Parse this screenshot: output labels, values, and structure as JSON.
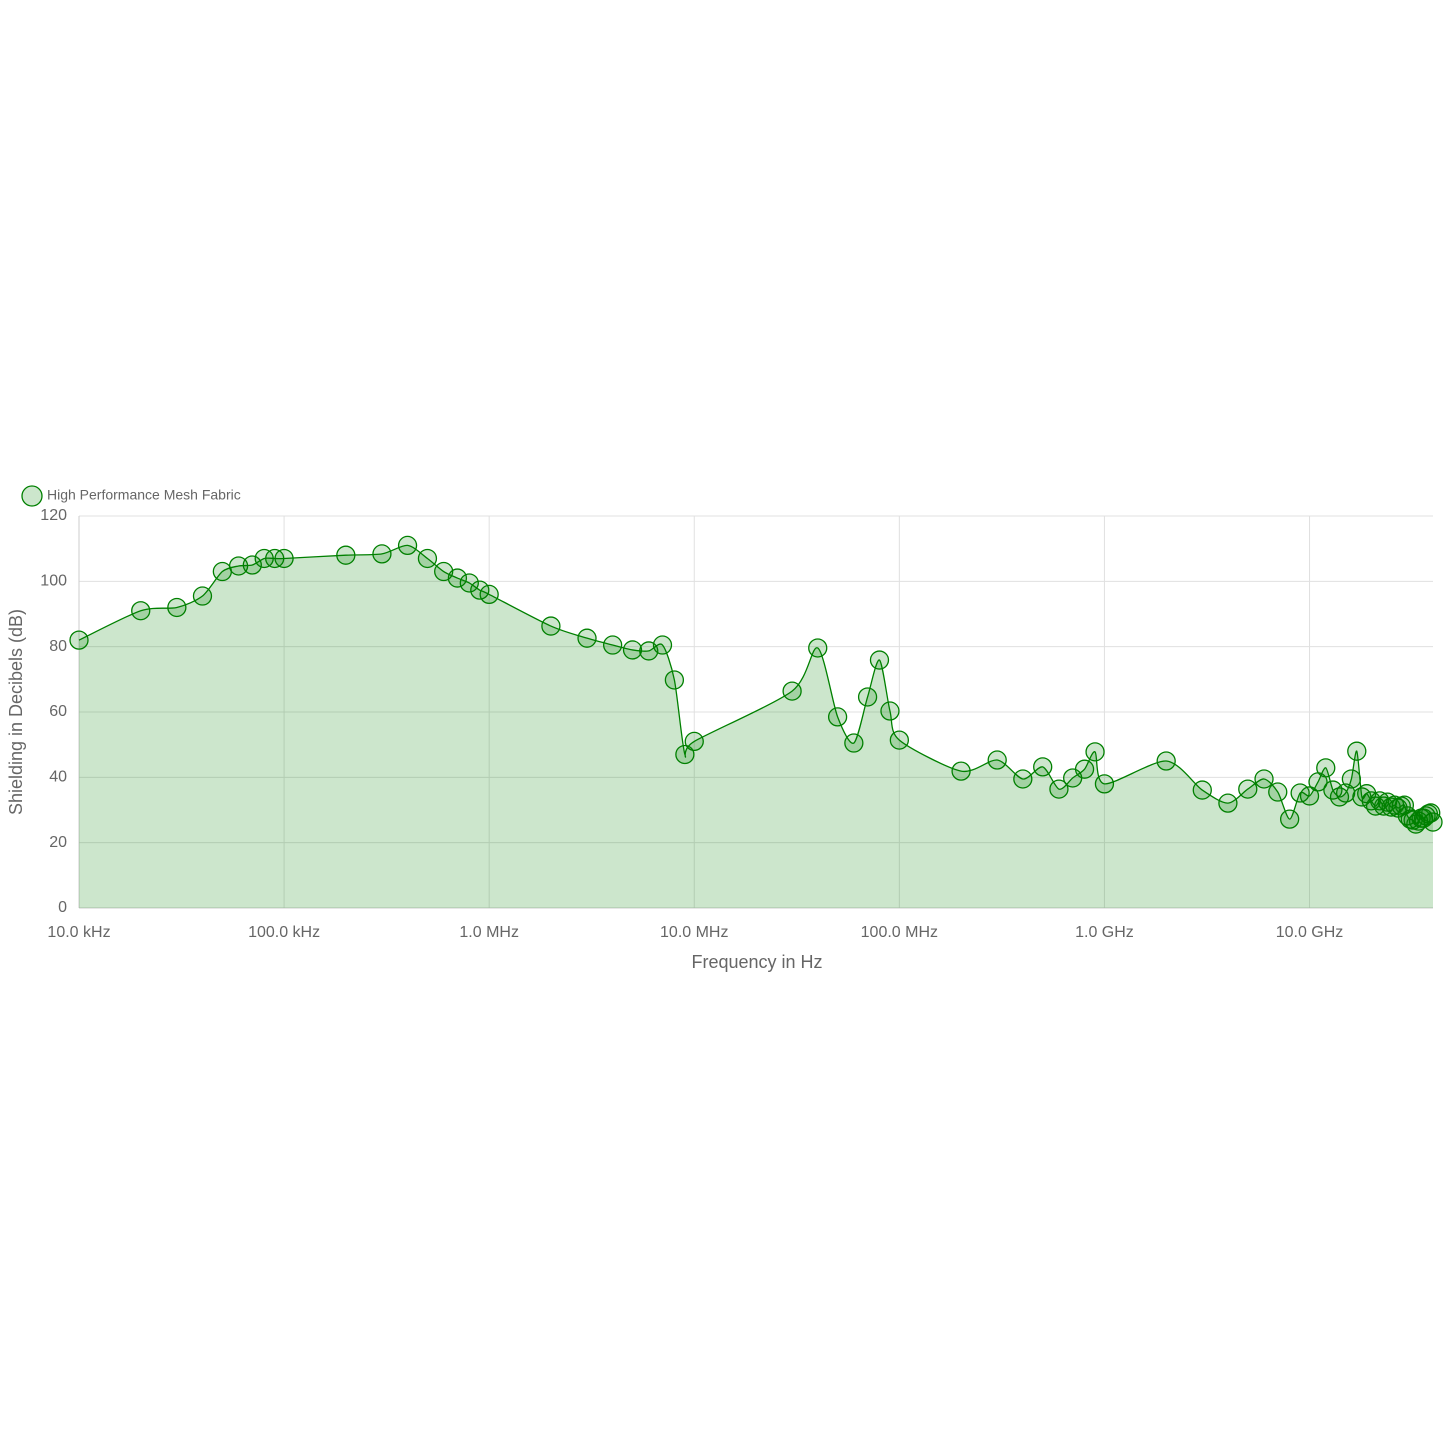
{
  "chart_data": {
    "type": "line",
    "x_label": "Frequency in Hz",
    "y_label": "Shielding in Decibels (dB)",
    "xscale": "log",
    "grid": true,
    "legend": "top-left",
    "area": true,
    "xlim": [
      10000,
      40000000000
    ],
    "ylim": [
      0,
      120
    ],
    "xticks": [
      {
        "value": 10000,
        "label": "10.0 kHz"
      },
      {
        "value": 100000,
        "label": "100.0 kHz"
      },
      {
        "value": 1000000,
        "label": "1.0 MHz"
      },
      {
        "value": 10000000,
        "label": "10.0 MHz"
      },
      {
        "value": 100000000,
        "label": "100.0 MHz"
      },
      {
        "value": 1000000000,
        "label": "1.0 GHz"
      },
      {
        "value": 10000000000,
        "label": "10.0 GHz"
      }
    ],
    "yticks": [
      0,
      20,
      40,
      60,
      80,
      100,
      120
    ],
    "series": [
      {
        "name": "High Performance Mesh Fabric",
        "color": "#008000",
        "fill": "rgba(0,128,0,0.2)",
        "x": [
          10000,
          20000,
          30000,
          40000,
          50000,
          60000,
          70000,
          80000,
          90000,
          100000,
          200000,
          300000,
          400000,
          500000,
          600000,
          700000,
          800000,
          900000,
          1000000,
          2000000,
          3000000,
          4000000,
          5000000,
          6000000,
          7000000,
          8000000,
          9000000,
          10000000,
          30000000,
          40000000,
          50000000,
          60000000,
          70000000,
          80000000,
          90000000,
          100000000,
          200000000,
          300000000,
          400000000,
          500000000,
          600000000,
          700000000,
          800000000,
          900000000,
          1000000000,
          2000000000,
          3000000000,
          4000000000,
          5000000000,
          6000000000,
          7000000000,
          8000000000,
          9000000000,
          10000000000,
          11000000000,
          12000000000,
          13000000000,
          14000000000,
          15000000000,
          16000000000,
          17000000000,
          18000000000,
          19000000000,
          20000000000,
          21000000000,
          22000000000,
          23000000000,
          24000000000,
          25000000000,
          26000000000,
          27000000000,
          28000000000,
          29000000000,
          30000000000,
          31000000000,
          32000000000,
          33000000000,
          34000000000,
          35000000000,
          36000000000,
          37000000000,
          38000000000,
          39000000000,
          40000000000
        ],
        "values": [
          82,
          91,
          92,
          95.5,
          103,
          104.7,
          105,
          107,
          107,
          107,
          108,
          108.4,
          111,
          107,
          103,
          101,
          99.5,
          97.3,
          96,
          86.3,
          82.6,
          80.5,
          79,
          78.7,
          80.5,
          69.8,
          47,
          51,
          66.4,
          79.6,
          58.5,
          50.5,
          64.6,
          75.9,
          60.3,
          51.4,
          41.9,
          45.3,
          39.5,
          43.2,
          36.4,
          39.8,
          42.5,
          47.8,
          38,
          45,
          36.1,
          32.1,
          36.4,
          39.5,
          35.5,
          27.2,
          35.2,
          34.3,
          38.6,
          42.9,
          36.1,
          34,
          35.2,
          39.5,
          48,
          34,
          35,
          32.8,
          31.2,
          32.8,
          31.2,
          32.4,
          30.9,
          31.5,
          30.6,
          31.2,
          31.5,
          28.2,
          27.2,
          26.9,
          25.7,
          26.6,
          27.5,
          27.5,
          28.2,
          28.8,
          29.1,
          26.3
        ]
      }
    ]
  }
}
